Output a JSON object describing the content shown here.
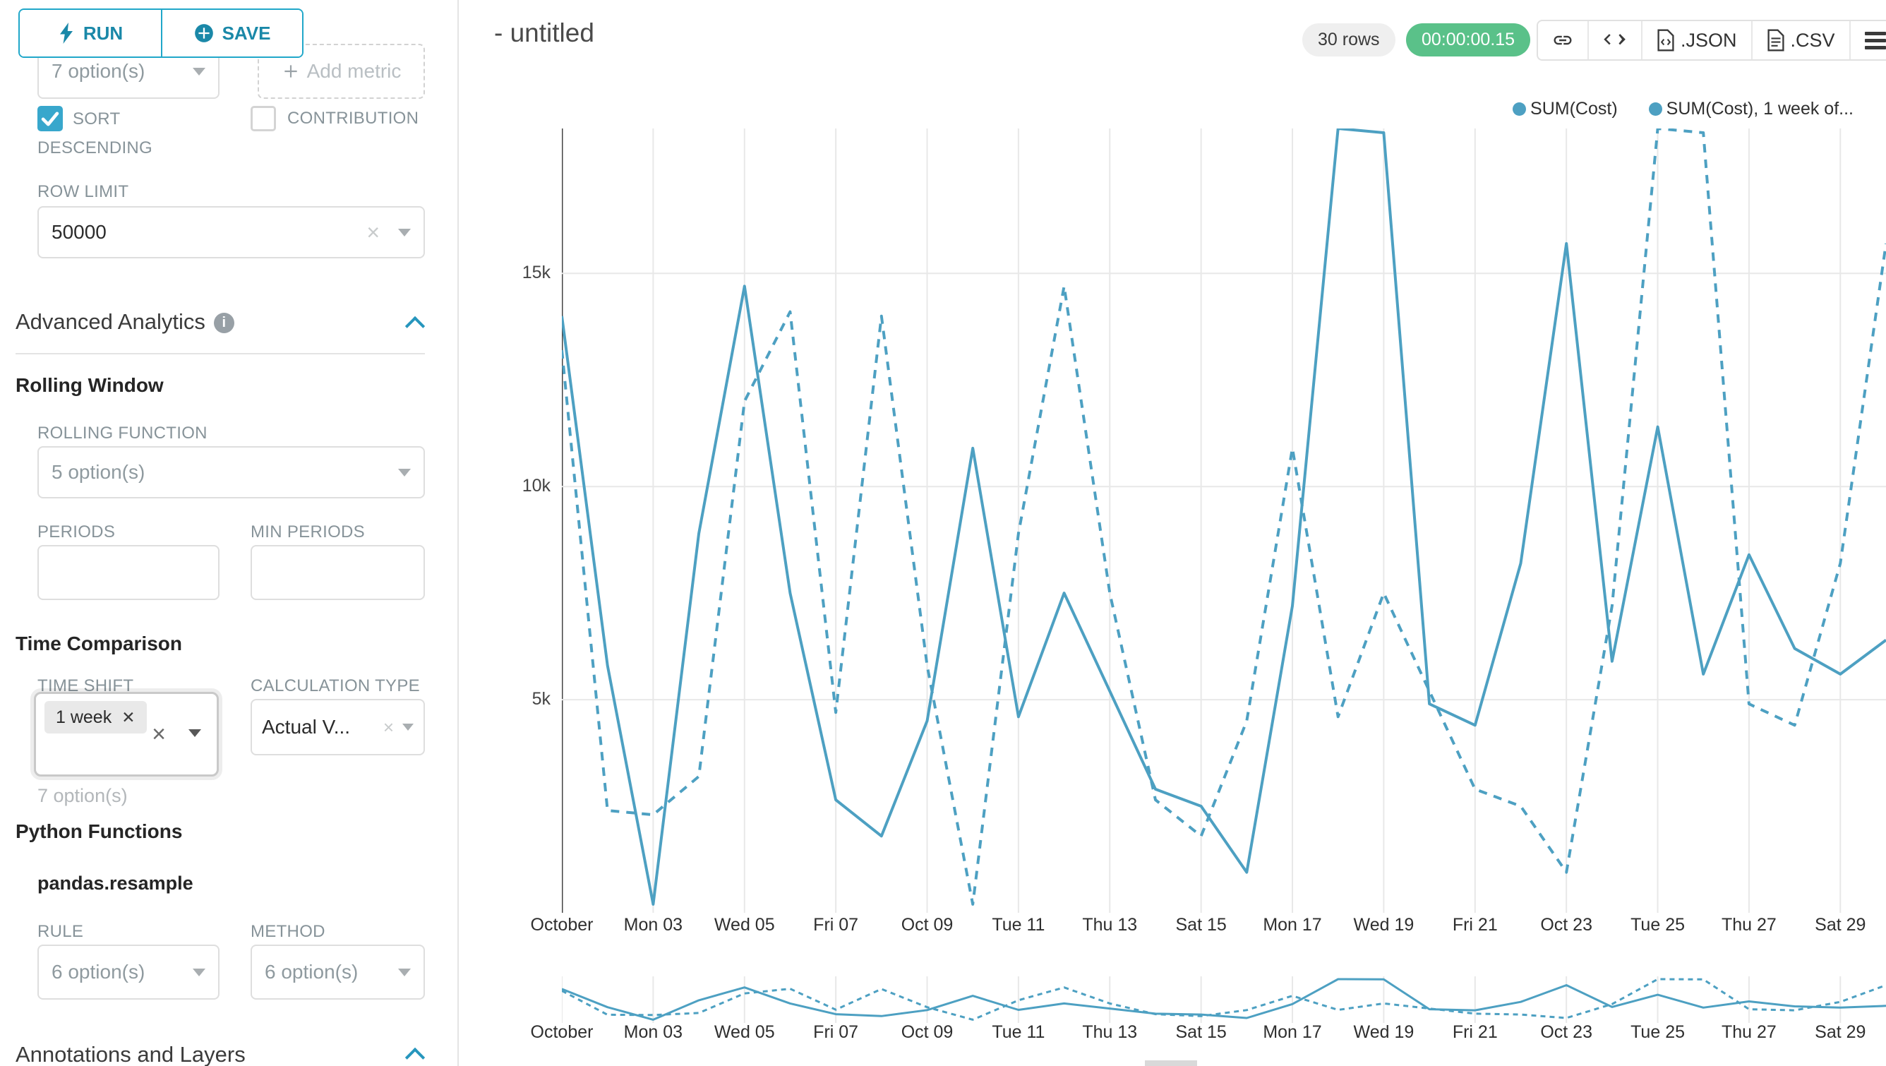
{
  "sidebar": {
    "run_label": "RUN",
    "save_label": "SAVE",
    "groupby_placeholder": "7 option(s)",
    "add_metric_label": "Add metric",
    "sort_descending_label": "SORT DESCENDING",
    "contribution_label": "CONTRIBUTION",
    "row_limit_label": "ROW LIMIT",
    "row_limit_value": "50000",
    "advanced_analytics_title": "Advanced Analytics",
    "rolling_window": {
      "title": "Rolling Window",
      "rolling_function_label": "ROLLING FUNCTION",
      "rolling_function_placeholder": "5 option(s)",
      "periods_label": "PERIODS",
      "min_periods_label": "MIN PERIODS"
    },
    "time_comparison": {
      "title": "Time Comparison",
      "time_shift_label": "TIME SHIFT",
      "time_shift_tag": "1 week",
      "time_shift_helper": "7 option(s)",
      "calculation_type_label": "CALCULATION TYPE",
      "calculation_type_value": "Actual V..."
    },
    "python_functions": {
      "title": "Python Functions",
      "subtitle": "pandas.resample",
      "rule_label": "RULE",
      "rule_placeholder": "6 option(s)",
      "method_label": "METHOD",
      "method_placeholder": "6 option(s)"
    },
    "annotations_title": "Annotations and Layers"
  },
  "header": {
    "title": "- untitled",
    "rows_badge": "30 rows",
    "timer_badge": "00:00:00.15",
    "json_label": ".JSON",
    "csv_label": ".CSV"
  },
  "chart_data": {
    "type": "line",
    "title": "- untitled",
    "xlabel": "",
    "ylabel": "",
    "x_tick_labels": [
      "October",
      "Mon 03",
      "Wed 05",
      "Fri 07",
      "Oct 09",
      "Tue 11",
      "Thu 13",
      "Sat 15",
      "Mon 17",
      "Wed 19",
      "Fri 21",
      "Oct 23",
      "Tue 25",
      "Thu 27",
      "Sat 29"
    ],
    "x_is_daily_october": true,
    "yticks": [
      {
        "label": "15k",
        "value": 15000
      },
      {
        "label": "10k",
        "value": 10000
      },
      {
        "label": "5k",
        "value": 5000
      }
    ],
    "ylim": [
      0,
      18400
    ],
    "grid": true,
    "legend_position": "top-right",
    "legend": [
      "SUM(Cost)",
      "SUM(Cost), 1 week of..."
    ],
    "series": [
      {
        "name": "SUM(Cost)",
        "style": "solid",
        "values": [
          14000,
          5800,
          200,
          8900,
          14700,
          7500,
          2650,
          1800,
          4500,
          10900,
          4600,
          7500,
          5200,
          2900,
          2500,
          950,
          7200,
          18400,
          18300,
          4900,
          4400,
          8200,
          15700,
          5900,
          11400,
          5600,
          8400,
          6200,
          5600,
          6400
        ]
      },
      {
        "name": "SUM(Cost), 1 week of...",
        "style": "dashed",
        "values": [
          13200,
          2400,
          2300,
          3200,
          12000,
          14100,
          4700,
          14000,
          5800,
          200,
          8900,
          14700,
          7500,
          2650,
          1800,
          4500,
          10900,
          4600,
          7500,
          5200,
          2900,
          2500,
          950,
          7200,
          18400,
          18300,
          4900,
          4400,
          8200,
          15700
        ]
      }
    ],
    "colors": {
      "line": "#4da0c2",
      "axis": "#444444",
      "grid": "#e8e8e8",
      "accent": "#20a7c9",
      "success": "#5ac189"
    }
  }
}
